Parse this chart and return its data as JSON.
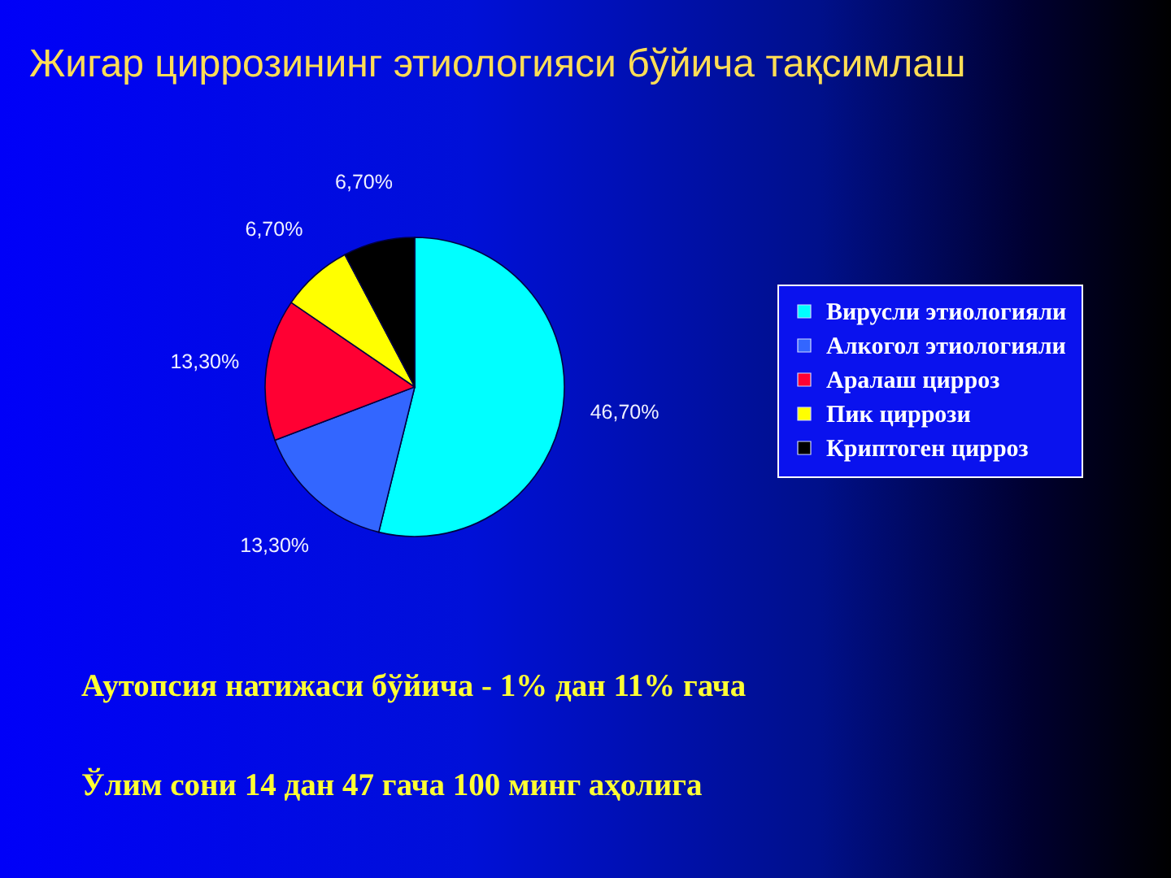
{
  "chart_data": {
    "type": "pie",
    "title": "Жигар циррозининг этиологияси бўйича тақсимлаш",
    "categories": [
      "Вирусли этиологияли",
      "Алкогол этиологияли",
      "Аралаш цирроз",
      "Пик циррози",
      "Криптоген цирроз"
    ],
    "values": [
      46.7,
      13.3,
      13.3,
      6.7,
      6.7
    ],
    "value_labels": [
      "46,70%",
      "13,30%",
      "13,30%",
      "6,70%",
      "6,70%"
    ],
    "colors": [
      "#00ffff",
      "#3366ff",
      "#ff0033",
      "#ffff00",
      "#000000"
    ],
    "legend": "right",
    "annotations": [
      "Аутопсия натижаси бўйича -  1% дан 11% гача",
      "Ўлим сони 14 дан  47 гача 100 минг аҳолига"
    ]
  }
}
